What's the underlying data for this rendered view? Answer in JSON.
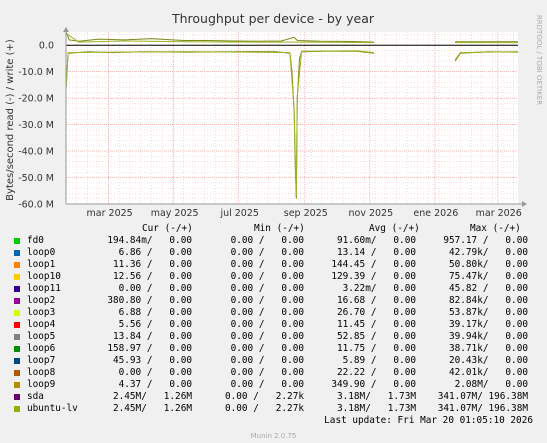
{
  "chart_data": {
    "type": "line",
    "title": "Throughput per device - by year",
    "ylabel": "Bytes/second read (-) / write (+)",
    "side_label": "RRDTOOL / TOBI OETIKER",
    "ylim": [
      -60000000,
      5000000
    ],
    "yticks": [
      {
        "value": 0,
        "label": "0.0"
      },
      {
        "value": -10000000,
        "label": "-10.0 M"
      },
      {
        "value": -20000000,
        "label": "-20.0 M"
      },
      {
        "value": -30000000,
        "label": "-30.0 M"
      },
      {
        "value": -40000000,
        "label": "-40.0 M"
      },
      {
        "value": -50000000,
        "label": "-50.0 M"
      },
      {
        "value": -60000000,
        "label": "-60.0 M"
      }
    ],
    "x_range": [
      "2025-01-20",
      "2026-03-20"
    ],
    "xticks": [
      {
        "date": "2025-03-01",
        "label": "mar 2025"
      },
      {
        "date": "2025-05-01",
        "label": "may 2025"
      },
      {
        "date": "2025-07-01",
        "label": "jul 2025"
      },
      {
        "date": "2025-09-01",
        "label": "sep 2025"
      },
      {
        "date": "2025-11-01",
        "label": "nov 2025"
      },
      {
        "date": "2026-01-01",
        "label": "ene 2026"
      },
      {
        "date": "2026-03-01",
        "label": "mar 2026"
      }
    ],
    "grid": true,
    "series": [
      {
        "name": "sda",
        "color": "#7a8a1a",
        "write": [
          [
            "2025-01-20",
            5000000
          ],
          [
            "2025-01-23",
            2000000
          ],
          [
            "2025-02-01",
            1500000
          ],
          [
            "2025-02-20",
            2300000
          ],
          [
            "2025-03-15",
            2000000
          ],
          [
            "2025-04-10",
            2500000
          ],
          [
            "2025-05-10",
            1800000
          ],
          [
            "2025-06-01",
            1800000
          ],
          [
            "2025-06-25",
            1600000
          ],
          [
            "2025-07-20",
            1500000
          ],
          [
            "2025-08-10",
            1600000
          ],
          [
            "2025-08-22",
            3000000
          ],
          [
            "2025-08-25",
            1800000
          ],
          [
            "2025-09-15",
            1500000
          ],
          [
            "2025-10-15",
            1400000
          ],
          [
            "2025-11-05",
            1200000
          ],
          [
            "2025-11-10",
            null
          ],
          [
            "2026-01-20",
            1300000
          ],
          [
            "2026-02-15",
            1300000
          ],
          [
            "2026-03-20",
            1300000
          ]
        ],
        "read": [
          [
            "2025-01-20",
            -17000000
          ],
          [
            "2025-01-22",
            -3000000
          ],
          [
            "2025-02-10",
            -2500000
          ],
          [
            "2025-03-05",
            -2800000
          ],
          [
            "2025-04-01",
            -2500000
          ],
          [
            "2025-05-15",
            -2600000
          ],
          [
            "2025-06-20",
            -2500000
          ],
          [
            "2025-07-15",
            -2400000
          ],
          [
            "2025-08-05",
            -2500000
          ],
          [
            "2025-08-18",
            -3000000
          ],
          [
            "2025-08-20",
            -10000000
          ],
          [
            "2025-08-22",
            -25000000
          ],
          [
            "2025-08-23",
            -45000000
          ],
          [
            "2025-08-24",
            -58000000
          ],
          [
            "2025-08-25",
            -20000000
          ],
          [
            "2025-08-27",
            -5000000
          ],
          [
            "2025-08-29",
            -2500000
          ],
          [
            "2025-09-20",
            -2300000
          ],
          [
            "2025-10-20",
            -2300000
          ],
          [
            "2025-11-05",
            -3000000
          ],
          [
            "2025-11-10",
            null
          ],
          [
            "2026-01-20",
            -6000000
          ],
          [
            "2026-01-25",
            -3000000
          ],
          [
            "2026-02-20",
            -2500000
          ],
          [
            "2026-03-20",
            -2600000
          ]
        ]
      },
      {
        "name": "ubuntu-lv",
        "color": "#98b520",
        "write": [
          [
            "2025-01-20",
            4500000
          ],
          [
            "2025-02-01",
            1200000
          ],
          [
            "2025-03-15",
            1600000
          ],
          [
            "2025-05-10",
            1300000
          ],
          [
            "2025-07-20",
            1200000
          ],
          [
            "2025-09-15",
            1200000
          ],
          [
            "2025-11-05",
            1000000
          ],
          [
            "2025-11-10",
            null
          ],
          [
            "2026-01-20",
            1000000
          ],
          [
            "2026-03-20",
            1000000
          ]
        ],
        "read": [
          [
            "2025-01-20",
            -16000000
          ],
          [
            "2025-01-22",
            -2800000
          ],
          [
            "2025-03-05",
            -2600000
          ],
          [
            "2025-05-15",
            -2400000
          ],
          [
            "2025-08-18",
            -2800000
          ],
          [
            "2025-08-22",
            -24000000
          ],
          [
            "2025-08-24",
            -57000000
          ],
          [
            "2025-08-25",
            -19000000
          ],
          [
            "2025-08-29",
            -2300000
          ],
          [
            "2025-10-20",
            -2100000
          ],
          [
            "2025-11-05",
            -2800000
          ],
          [
            "2025-11-10",
            null
          ],
          [
            "2026-01-20",
            -5500000
          ],
          [
            "2026-01-25",
            -2800000
          ],
          [
            "2026-03-20",
            -2400000
          ]
        ]
      }
    ]
  },
  "legend": {
    "headers": {
      "cur": "Cur (-/+)",
      "min": "Min (-/+)",
      "avg": "Avg (-/+)",
      "max": "Max (-/+)"
    },
    "rows": [
      {
        "name": "fd0",
        "color": "#00cc00",
        "cur": "194.84m/   0.00",
        "min": "0.00 /   0.00",
        "avg": "91.60m/   0.00",
        "max": "957.17 /   0.00"
      },
      {
        "name": "loop0",
        "color": "#0066b3",
        "cur": "6.86 /   0.00",
        "min": "0.00 /   0.00",
        "avg": "13.14 /   0.00",
        "max": "42.79k/   0.00"
      },
      {
        "name": "loop1",
        "color": "#ff8000",
        "cur": "11.36 /   0.00",
        "min": "0.00 /   0.00",
        "avg": "144.45 /   0.00",
        "max": "50.80k/   0.00"
      },
      {
        "name": "loop10",
        "color": "#ffcc00",
        "cur": "12.56 /   0.00",
        "min": "0.00 /   0.00",
        "avg": "129.39 /   0.00",
        "max": "75.47k/   0.00"
      },
      {
        "name": "loop11",
        "color": "#330099",
        "cur": "0.00 /   0.00",
        "min": "0.00 /   0.00",
        "avg": "3.22m/   0.00",
        "max": "45.82 /   0.00"
      },
      {
        "name": "loop2",
        "color": "#990099",
        "cur": "380.80 /   0.00",
        "min": "0.00 /   0.00",
        "avg": "16.68 /   0.00",
        "max": "82.84k/   0.00"
      },
      {
        "name": "loop3",
        "color": "#ccff00",
        "cur": "6.88 /   0.00",
        "min": "0.00 /   0.00",
        "avg": "26.70 /   0.00",
        "max": "53.87k/   0.00"
      },
      {
        "name": "loop4",
        "color": "#ff0000",
        "cur": "5.56 /   0.00",
        "min": "0.00 /   0.00",
        "avg": "11.45 /   0.00",
        "max": "39.17k/   0.00"
      },
      {
        "name": "loop5",
        "color": "#808080",
        "cur": "13.84 /   0.00",
        "min": "0.00 /   0.00",
        "avg": "52.85 /   0.00",
        "max": "39.94k/   0.00"
      },
      {
        "name": "loop6",
        "color": "#008f00",
        "cur": "158.97 /   0.00",
        "min": "0.00 /   0.00",
        "avg": "11.75 /   0.00",
        "max": "38.71k/   0.00"
      },
      {
        "name": "loop7",
        "color": "#00487d",
        "cur": "45.93 /   0.00",
        "min": "0.00 /   0.00",
        "avg": "5.89 /   0.00",
        "max": "20.43k/   0.00"
      },
      {
        "name": "loop8",
        "color": "#b35a00",
        "cur": "0.00 /   0.00",
        "min": "0.00 /   0.00",
        "avg": "22.22 /   0.00",
        "max": "42.01k/   0.00"
      },
      {
        "name": "loop9",
        "color": "#b38f00",
        "cur": "4.37 /   0.00",
        "min": "0.00 /   0.00",
        "avg": "349.90 /   0.00",
        "max": "2.08M/   0.00"
      },
      {
        "name": "sda",
        "color": "#6b006b",
        "cur": "2.45M/   1.26M",
        "min": "0.00 /   2.27k",
        "avg": "3.18M/   1.73M",
        "max": "341.07M/ 196.38M"
      },
      {
        "name": "ubuntu-lv",
        "color": "#8fb300",
        "cur": "2.45M/   1.26M",
        "min": "0.00 /   2.27k",
        "avg": "3.18M/   1.73M",
        "max": "341.07M/ 196.38M"
      }
    ]
  },
  "footer": {
    "last_update": "Last update: Fri Mar 20 01:05:10 2026",
    "version": "Munin 2.0.75"
  }
}
